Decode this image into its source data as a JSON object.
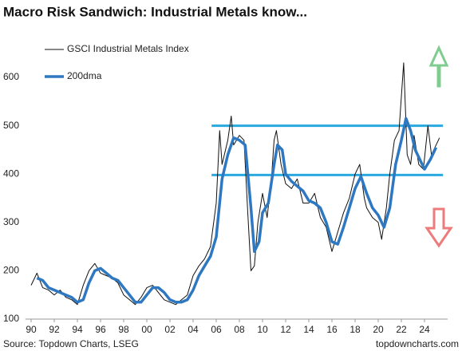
{
  "chart_data": {
    "type": "line",
    "title": "Macro Risk Sandwich: Industrial Metals know...",
    "source": "Source: Topdown Charts, LSEG",
    "website": "topdowncharts.com",
    "xlim": [
      1989.5,
      2026
    ],
    "ylim": [
      100,
      700
    ],
    "yticks": [
      100,
      200,
      300,
      400,
      500,
      600
    ],
    "xticks": [
      {
        "value": 1990,
        "label": "90"
      },
      {
        "value": 1992,
        "label": "92"
      },
      {
        "value": 1994,
        "label": "94"
      },
      {
        "value": 1996,
        "label": "96"
      },
      {
        "value": 1998,
        "label": "98"
      },
      {
        "value": 2000,
        "label": "00"
      },
      {
        "value": 2002,
        "label": "02"
      },
      {
        "value": 2004,
        "label": "04"
      },
      {
        "value": 2006,
        "label": "06"
      },
      {
        "value": 2008,
        "label": "08"
      },
      {
        "value": 2010,
        "label": "10"
      },
      {
        "value": 2012,
        "label": "12"
      },
      {
        "value": 2014,
        "label": "14"
      },
      {
        "value": 2016,
        "label": "16"
      },
      {
        "value": 2018,
        "label": "18"
      },
      {
        "value": 2020,
        "label": "20"
      },
      {
        "value": 2022,
        "label": "22"
      },
      {
        "value": 2024,
        "label": "24"
      }
    ],
    "legend": "upper left",
    "levels": [
      {
        "value": 500,
        "color": "#2aa9e0"
      },
      {
        "value": 398,
        "color": "#2aa9e0"
      }
    ],
    "level_xrange": [
      2005.6,
      2025.6
    ],
    "series": [
      {
        "name": "GSCI Industrial Metals Index",
        "color": "#111111",
        "width": 1,
        "x": [
          1990,
          1990.5,
          1991,
          1991.5,
          1992,
          1992.5,
          1993,
          1993.5,
          1994,
          1994.5,
          1995,
          1995.5,
          1996,
          1996.5,
          1997,
          1997.5,
          1998,
          1998.5,
          1999,
          1999.5,
          2000,
          2000.5,
          2001,
          2001.5,
          2002,
          2002.5,
          2003,
          2003.5,
          2004,
          2004.5,
          2005,
          2005.5,
          2006,
          2006.3,
          2006.5,
          2007,
          2007.3,
          2007.5,
          2008,
          2008.4,
          2008.7,
          2009,
          2009.3,
          2009.6,
          2010,
          2010.4,
          2010.8,
          2011,
          2011.2,
          2011.6,
          2012,
          2012.5,
          2013,
          2013.5,
          2014,
          2014.5,
          2015,
          2015.5,
          2016,
          2016.5,
          2017,
          2017.5,
          2018,
          2018.4,
          2018.8,
          2019,
          2019.5,
          2020,
          2020.3,
          2020.7,
          2021,
          2021.4,
          2021.8,
          2022.2,
          2022.5,
          2022.8,
          2023.1,
          2023.5,
          2023.9,
          2024.3,
          2024.6,
          2025,
          2025.3
        ],
        "values": [
          170,
          195,
          165,
          160,
          150,
          160,
          145,
          140,
          130,
          170,
          200,
          215,
          195,
          190,
          185,
          175,
          150,
          140,
          130,
          145,
          165,
          170,
          155,
          140,
          135,
          130,
          140,
          150,
          190,
          210,
          225,
          250,
          340,
          490,
          420,
          470,
          520,
          460,
          480,
          470,
          330,
          200,
          210,
          300,
          360,
          310,
          400,
          470,
          490,
          420,
          380,
          370,
          390,
          340,
          340,
          360,
          310,
          290,
          240,
          280,
          320,
          350,
          400,
          420,
          350,
          330,
          310,
          300,
          265,
          330,
          400,
          470,
          490,
          630,
          440,
          420,
          480,
          420,
          410,
          500,
          440,
          460,
          475
        ]
      },
      {
        "name": "200dma",
        "color": "#2e78c2",
        "width": 3.5,
        "x": [
          1990.5,
          1991,
          1991.5,
          1992,
          1992.5,
          1993,
          1993.5,
          1994,
          1994.5,
          1995,
          1995.5,
          1996,
          1996.5,
          1997,
          1997.5,
          1998,
          1998.5,
          1999,
          1999.5,
          2000,
          2000.5,
          2001,
          2001.5,
          2002,
          2002.5,
          2003,
          2003.5,
          2004,
          2004.5,
          2005,
          2005.5,
          2006,
          2006.5,
          2007,
          2007.5,
          2008,
          2008.5,
          2009,
          2009.3,
          2009.7,
          2010,
          2010.5,
          2011,
          2011.3,
          2011.7,
          2012,
          2012.5,
          2013,
          2013.5,
          2014,
          2014.5,
          2015,
          2015.5,
          2016,
          2016.5,
          2017,
          2017.5,
          2018,
          2018.5,
          2019,
          2019.5,
          2020,
          2020.5,
          2021,
          2021.5,
          2022,
          2022.4,
          2022.8,
          2023.2,
          2023.6,
          2024,
          2024.5,
          2025
        ],
        "values": [
          185,
          180,
          165,
          160,
          155,
          150,
          145,
          135,
          140,
          175,
          200,
          205,
          195,
          185,
          180,
          165,
          150,
          135,
          135,
          150,
          165,
          165,
          155,
          140,
          135,
          135,
          140,
          160,
          190,
          210,
          230,
          270,
          390,
          440,
          475,
          470,
          460,
          330,
          240,
          260,
          320,
          340,
          420,
          460,
          450,
          400,
          385,
          375,
          365,
          345,
          340,
          330,
          300,
          260,
          255,
          290,
          330,
          370,
          395,
          360,
          330,
          315,
          290,
          330,
          420,
          470,
          515,
          490,
          450,
          430,
          410,
          430,
          455
        ]
      }
    ]
  }
}
